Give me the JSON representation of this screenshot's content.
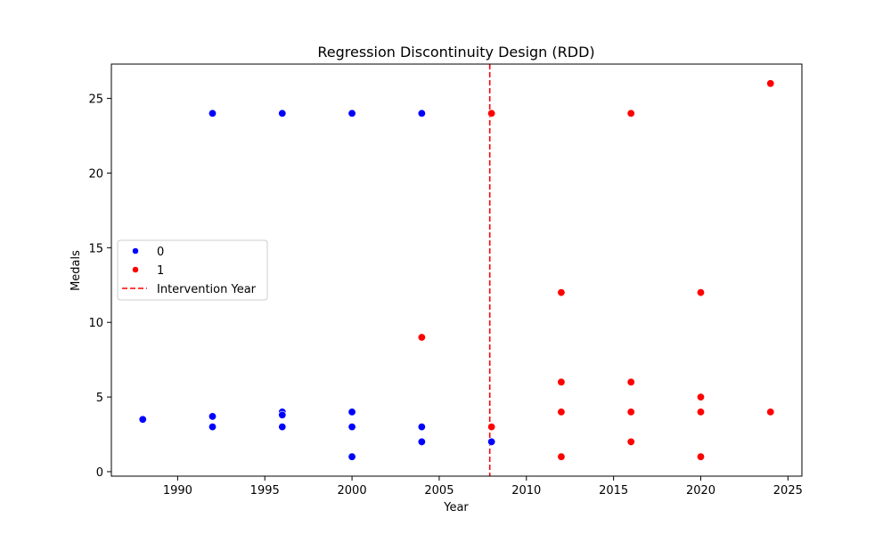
{
  "chart_data": {
    "type": "scatter",
    "title": "Regression Discontinuity Design (RDD)",
    "xlabel": "Year",
    "ylabel": "Medals",
    "xlim": [
      1986.2,
      2025.8
    ],
    "ylim": [
      -0.3,
      27.3
    ],
    "xticks": [
      1990,
      1995,
      2000,
      2005,
      2010,
      2015,
      2020,
      2025
    ],
    "yticks": [
      0,
      5,
      10,
      15,
      20,
      25
    ],
    "grid": false,
    "legend_position": "center-left",
    "series": [
      {
        "name": "0",
        "color": "#0000ff",
        "points": [
          [
            1988,
            3.5
          ],
          [
            1992,
            24
          ],
          [
            1992,
            3.7
          ],
          [
            1992,
            3
          ],
          [
            1996,
            24
          ],
          [
            1996,
            4
          ],
          [
            1996,
            3.8
          ],
          [
            1996,
            3
          ],
          [
            2000,
            24
          ],
          [
            2000,
            4
          ],
          [
            2000,
            3
          ],
          [
            2000,
            1
          ],
          [
            2004,
            24
          ],
          [
            2004,
            3
          ],
          [
            2004,
            2
          ],
          [
            2008,
            24
          ],
          [
            2008,
            2
          ]
        ]
      },
      {
        "name": "1",
        "color": "#ff0000",
        "points": [
          [
            2004,
            9
          ],
          [
            2008,
            24
          ],
          [
            2008,
            3
          ],
          [
            2012,
            12
          ],
          [
            2012,
            6
          ],
          [
            2012,
            4
          ],
          [
            2012,
            1
          ],
          [
            2016,
            24
          ],
          [
            2016,
            6
          ],
          [
            2016,
            4
          ],
          [
            2016,
            2
          ],
          [
            2020,
            12
          ],
          [
            2020,
            5
          ],
          [
            2020,
            4
          ],
          [
            2020,
            1
          ],
          [
            2024,
            26
          ],
          [
            2024,
            4
          ]
        ]
      }
    ],
    "intervention": {
      "name": "Intervention Year",
      "x": 2007.9,
      "color": "#ff0000",
      "style": "dashed"
    }
  }
}
